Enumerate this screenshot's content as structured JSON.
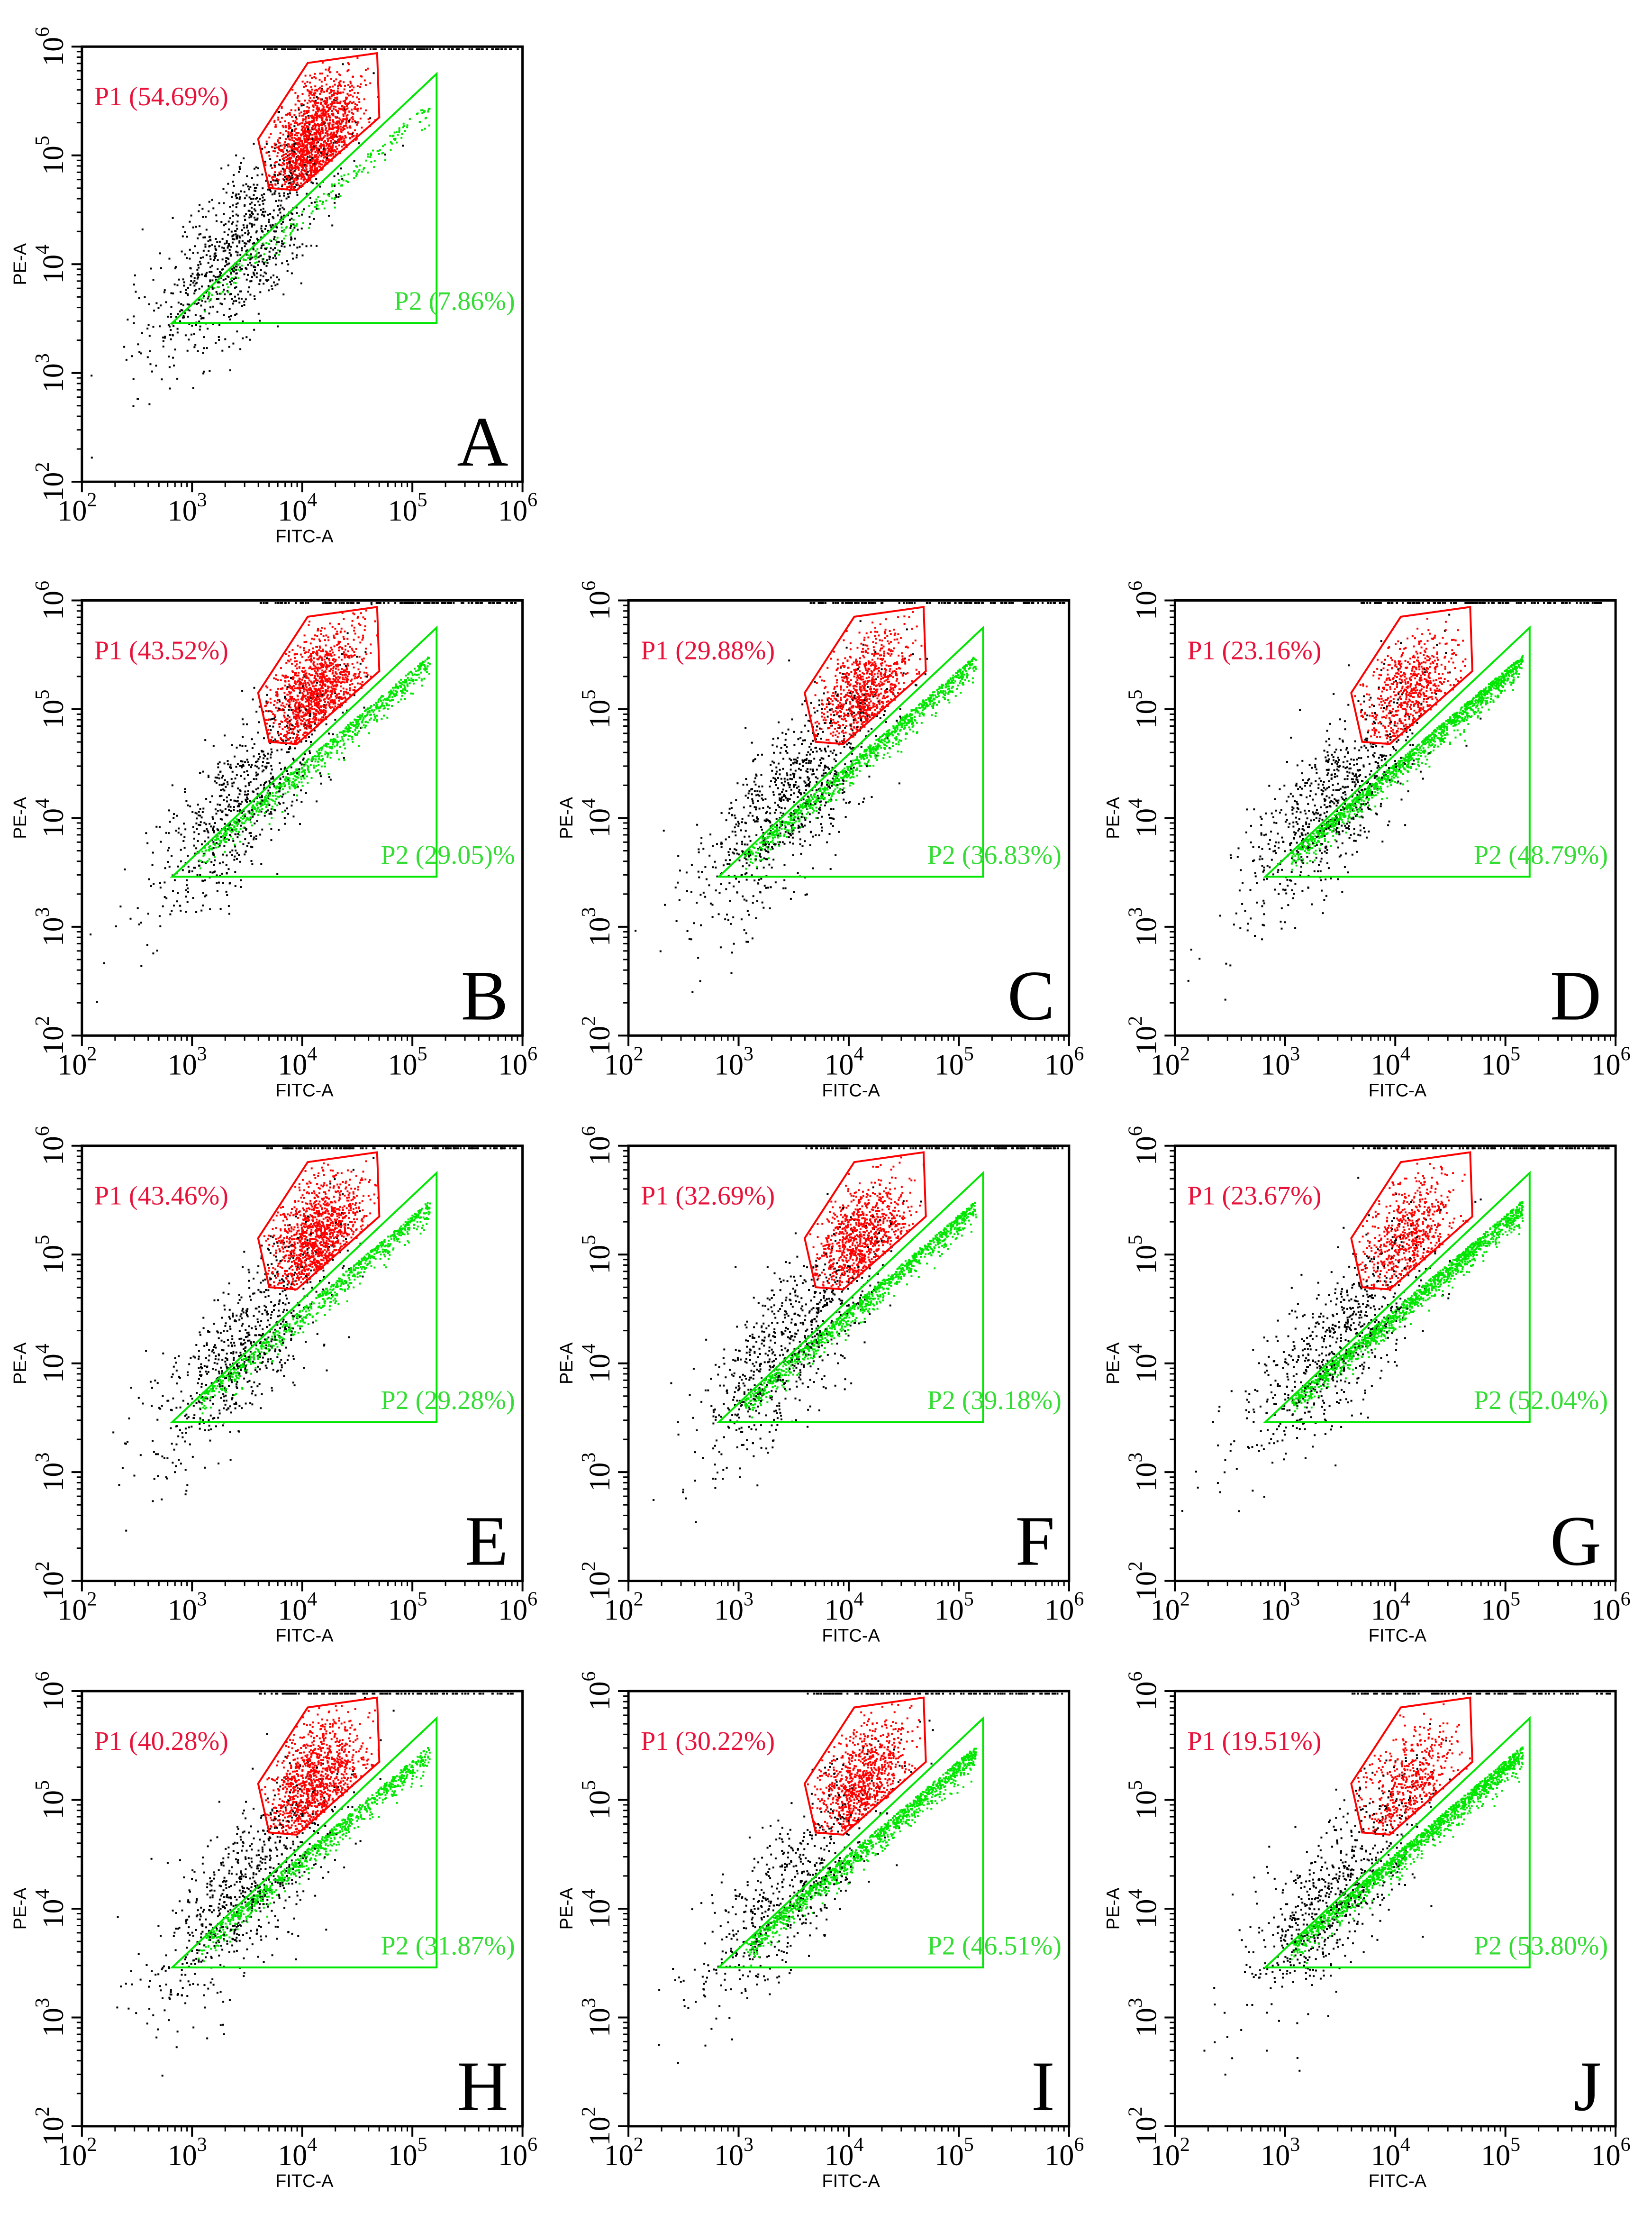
{
  "figure": {
    "axis_x_label": "FITC-A",
    "axis_y_label": "PE-A",
    "axis_scale": "log10",
    "tick_base": "10",
    "tick_exponents": [
      "2",
      "3",
      "4",
      "5",
      "6"
    ],
    "gate_names": [
      "P1",
      "P2"
    ]
  },
  "colors": {
    "p1": "#ff0000",
    "p1_text": "#e8123a",
    "p2": "#00e600",
    "p2_text": "#33dd33",
    "ungated": "#000000",
    "axis": "#000000"
  },
  "chart_data": [
    {
      "type": "scatter",
      "panel": "A",
      "xlabel": "FITC-A",
      "ylabel": "PE-A",
      "xlim": [
        100,
        1000000
      ],
      "ylim": [
        100,
        1000000
      ],
      "gates": [
        {
          "name": "P1",
          "label": "P1 (54.69%)",
          "percent": 54.69
        },
        {
          "name": "P2",
          "label": "P2 (7.86%)",
          "percent": 7.86
        }
      ]
    },
    {
      "type": "scatter",
      "panel": "B",
      "xlabel": "FITC-A",
      "ylabel": "PE-A",
      "xlim": [
        100,
        1000000
      ],
      "ylim": [
        100,
        1000000
      ],
      "gates": [
        {
          "name": "P1",
          "label": "P1 (43.52%)",
          "percent": 43.52
        },
        {
          "name": "P2",
          "label": "P2 (29.05)%",
          "percent": 29.05
        }
      ]
    },
    {
      "type": "scatter",
      "panel": "C",
      "xlabel": "FITC-A",
      "ylabel": "PE-A",
      "xlim": [
        100,
        1000000
      ],
      "ylim": [
        100,
        1000000
      ],
      "gates": [
        {
          "name": "P1",
          "label": "P1 (29.88%)",
          "percent": 29.88
        },
        {
          "name": "P2",
          "label": "P2 (36.83%)",
          "percent": 36.83
        }
      ]
    },
    {
      "type": "scatter",
      "panel": "D",
      "xlabel": "FITC-A",
      "ylabel": "PE-A",
      "xlim": [
        100,
        1000000
      ],
      "ylim": [
        100,
        1000000
      ],
      "gates": [
        {
          "name": "P1",
          "label": "P1 (23.16%)",
          "percent": 23.16
        },
        {
          "name": "P2",
          "label": "P2 (48.79%)",
          "percent": 48.79
        }
      ]
    },
    {
      "type": "scatter",
      "panel": "E",
      "xlabel": "FITC-A",
      "ylabel": "PE-A",
      "xlim": [
        100,
        1000000
      ],
      "ylim": [
        100,
        1000000
      ],
      "gates": [
        {
          "name": "P1",
          "label": "P1 (43.46%)",
          "percent": 43.46
        },
        {
          "name": "P2",
          "label": "P2 (29.28%)",
          "percent": 29.28
        }
      ]
    },
    {
      "type": "scatter",
      "panel": "F",
      "xlabel": "FITC-A",
      "ylabel": "PE-A",
      "xlim": [
        100,
        1000000
      ],
      "ylim": [
        100,
        1000000
      ],
      "gates": [
        {
          "name": "P1",
          "label": "P1 (32.69%)",
          "percent": 32.69
        },
        {
          "name": "P2",
          "label": "P2 (39.18%)",
          "percent": 39.18
        }
      ]
    },
    {
      "type": "scatter",
      "panel": "G",
      "xlabel": "FITC-A",
      "ylabel": "PE-A",
      "xlim": [
        100,
        1000000
      ],
      "ylim": [
        100,
        1000000
      ],
      "gates": [
        {
          "name": "P1",
          "label": "P1 (23.67%)",
          "percent": 23.67
        },
        {
          "name": "P2",
          "label": "P2 (52.04%)",
          "percent": 52.04
        }
      ]
    },
    {
      "type": "scatter",
      "panel": "H",
      "xlabel": "FITC-A",
      "ylabel": "PE-A",
      "xlim": [
        100,
        1000000
      ],
      "ylim": [
        100,
        1000000
      ],
      "gates": [
        {
          "name": "P1",
          "label": "P1 (40.28%)",
          "percent": 40.28
        },
        {
          "name": "P2",
          "label": "P2 (31.87%)",
          "percent": 31.87
        }
      ]
    },
    {
      "type": "scatter",
      "panel": "I",
      "xlabel": "FITC-A",
      "ylabel": "PE-A",
      "xlim": [
        100,
        1000000
      ],
      "ylim": [
        100,
        1000000
      ],
      "gates": [
        {
          "name": "P1",
          "label": "P1 (30.22%)",
          "percent": 30.22
        },
        {
          "name": "P2",
          "label": "P2 (46.51%)",
          "percent": 46.51
        }
      ]
    },
    {
      "type": "scatter",
      "panel": "J",
      "xlabel": "FITC-A",
      "ylabel": "PE-A",
      "xlim": [
        100,
        1000000
      ],
      "ylim": [
        100,
        1000000
      ],
      "gates": [
        {
          "name": "P1",
          "label": "P1 (19.51%)",
          "percent": 19.51
        },
        {
          "name": "P2",
          "label": "P2 (53.80%)",
          "percent": 53.8
        }
      ]
    }
  ]
}
